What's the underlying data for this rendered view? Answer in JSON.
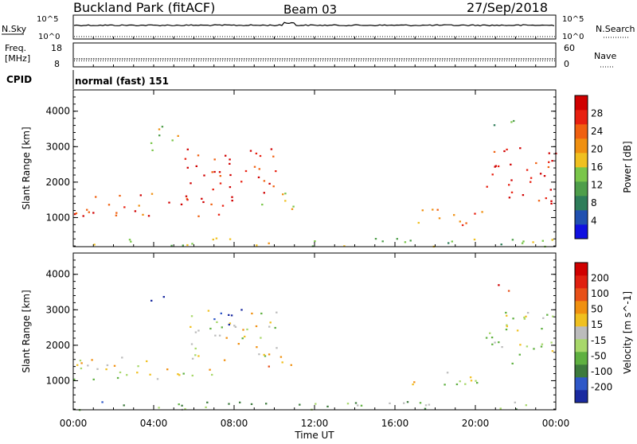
{
  "header": {
    "title": "Buckland Park (fitACF)",
    "beam": "Beam 03",
    "date": "27/Sep/2018"
  },
  "strip1": {
    "left_label": "N.Sky",
    "right_label": "N.Search",
    "left_ticks": [
      "10^5",
      "10^0"
    ],
    "right_ticks": [
      "10^5",
      "10^0"
    ]
  },
  "strip2": {
    "left_label_line1": "Freq.",
    "left_label_line2": "[MHz]",
    "right_label": "Nave",
    "left_ticks": [
      "18",
      "8"
    ],
    "right_ticks": [
      "60",
      "0"
    ]
  },
  "cpid": {
    "label": "CPID",
    "value": "normal (fast) 151"
  },
  "colors": {
    "power_scale": [
      "#1010e0",
      "#2050b0",
      "#2e7d5a",
      "#4e9e4a",
      "#7ac64a",
      "#f0c020",
      "#f09010",
      "#f06010",
      "#e82010",
      "#d00000"
    ],
    "velocity_scale": [
      "#1a2aa0",
      "#2f58c8",
      "#3d7a3d",
      "#5fb040",
      "#a8d86a",
      "#bcbcbc",
      "#f0c020",
      "#f09010",
      "#e85018",
      "#e02010",
      "#d00000"
    ]
  },
  "chart_data": [
    {
      "type": "heatmap",
      "panel": "power",
      "xlabel": "Time UT",
      "ylabel": "Slant Range [km]",
      "x_ticks": [
        "00:00",
        "04:00",
        "08:00",
        "12:00",
        "16:00",
        "20:00",
        "00:00"
      ],
      "xlim_hours": [
        0,
        24
      ],
      "y_ticks": [
        1000,
        2000,
        3000,
        4000
      ],
      "ylim": [
        180,
        4600
      ],
      "colorbar": {
        "label": "Power [dB]",
        "ticks": [
          4,
          8,
          12,
          16,
          20,
          24,
          28
        ],
        "range": [
          0,
          32
        ]
      },
      "features": [
        {
          "t_start": 0.0,
          "t_end": 24.0,
          "range_low": 200,
          "range_high": 450,
          "value_level": 0.45
        },
        {
          "t_start": 0.0,
          "t_end": 8.0,
          "range_low": 1050,
          "range_high": 1750,
          "value_level": 0.85
        },
        {
          "t_start": 5.5,
          "t_end": 10.2,
          "range_low": 1700,
          "range_high": 3000,
          "value_level": 0.9
        },
        {
          "t_start": 3.8,
          "t_end": 5.2,
          "range_low": 2800,
          "range_high": 3700,
          "value_level": 0.5
        },
        {
          "t_start": 9.3,
          "t_end": 11.2,
          "range_low": 1200,
          "range_high": 1800,
          "value_level": 0.55
        },
        {
          "t_start": 16.5,
          "t_end": 20.3,
          "range_low": 800,
          "range_high": 1300,
          "value_level": 0.7
        },
        {
          "t_start": 20.5,
          "t_end": 24.0,
          "range_low": 1400,
          "range_high": 3000,
          "value_level": 0.85
        },
        {
          "t_start": 20.8,
          "t_end": 22.0,
          "range_low": 3600,
          "range_high": 4000,
          "value_level": 0.4
        }
      ]
    },
    {
      "type": "heatmap",
      "panel": "velocity",
      "xlabel": "Time UT",
      "ylabel": "Slant Range [km]",
      "x_ticks": [
        "00:00",
        "04:00",
        "08:00",
        "12:00",
        "16:00",
        "20:00",
        "00:00"
      ],
      "xlim_hours": [
        0,
        24
      ],
      "y_ticks": [
        1000,
        2000,
        3000,
        4000
      ],
      "ylim": [
        180,
        4600
      ],
      "colorbar": {
        "label": "Velocity [m s^-1]",
        "ticks": [
          200,
          100,
          50,
          15,
          -15,
          -50,
          -100,
          -200
        ],
        "range": [
          -250,
          250
        ]
      },
      "features": [
        {
          "t_start": 0.0,
          "t_end": 24.0,
          "range_low": 200,
          "range_high": 450,
          "value_level": 0.35
        },
        {
          "t_start": 0.0,
          "t_end": 8.0,
          "range_low": 1050,
          "range_high": 1750,
          "value_level": 0.5
        },
        {
          "t_start": 5.5,
          "t_end": 10.2,
          "range_low": 1700,
          "range_high": 3000,
          "value_level": 0.5
        },
        {
          "t_start": 3.8,
          "t_end": 4.6,
          "range_low": 3200,
          "range_high": 3600,
          "value_level": 0.05
        },
        {
          "t_start": 6.5,
          "t_end": 8.5,
          "range_low": 2600,
          "range_high": 3100,
          "value_level": 0.05
        },
        {
          "t_start": 9.3,
          "t_end": 11.2,
          "range_low": 1200,
          "range_high": 1800,
          "value_level": 0.65
        },
        {
          "t_start": 16.5,
          "t_end": 20.3,
          "range_low": 800,
          "range_high": 1300,
          "value_level": 0.5
        },
        {
          "t_start": 20.5,
          "t_end": 24.0,
          "range_low": 1400,
          "range_high": 3000,
          "value_level": 0.45
        },
        {
          "t_start": 20.8,
          "t_end": 21.8,
          "range_low": 3450,
          "range_high": 3750,
          "value_level": 0.95
        }
      ]
    }
  ]
}
